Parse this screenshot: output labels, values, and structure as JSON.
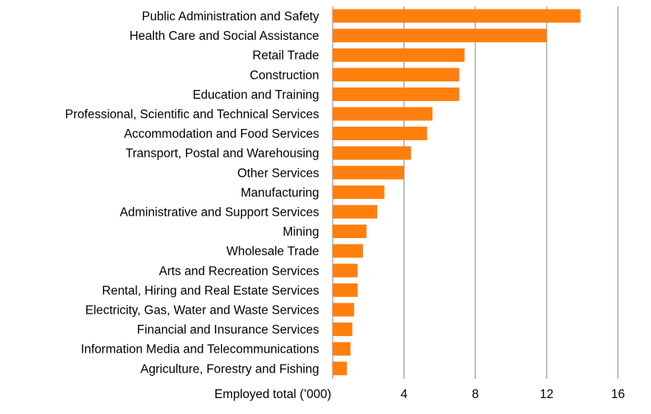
{
  "chart_data": {
    "type": "bar",
    "orientation": "horizontal",
    "title": "",
    "xlabel": "Employed total (’000)",
    "ylabel": "",
    "xlim": [
      0,
      16
    ],
    "xticks": [
      4,
      8,
      12,
      16
    ],
    "grid": true,
    "legend": "none",
    "bar_color": "#FF7F0E",
    "categories": [
      "Public Administration and Safety",
      "Health Care and Social Assistance",
      "Retail Trade",
      "Construction",
      "Education and Training",
      "Professional, Scientific and Technical Services",
      "Accommodation and Food Services",
      "Transport, Postal and Warehousing",
      "Other Services",
      "Manufacturing",
      "Administrative and Support Services",
      "Mining",
      "Wholesale Trade",
      "Arts and Recreation Services",
      "Rental, Hiring and Real Estate Services",
      "Electricity, Gas, Water and Waste Services",
      "Financial and Insurance Services",
      "Information Media and Telecommunications",
      "Agriculture, Forestry and Fishing"
    ],
    "values": [
      13.9,
      12.0,
      7.4,
      7.1,
      7.1,
      5.6,
      5.3,
      4.4,
      4.0,
      2.9,
      2.5,
      1.9,
      1.7,
      1.4,
      1.4,
      1.2,
      1.1,
      1.0,
      0.8
    ]
  }
}
